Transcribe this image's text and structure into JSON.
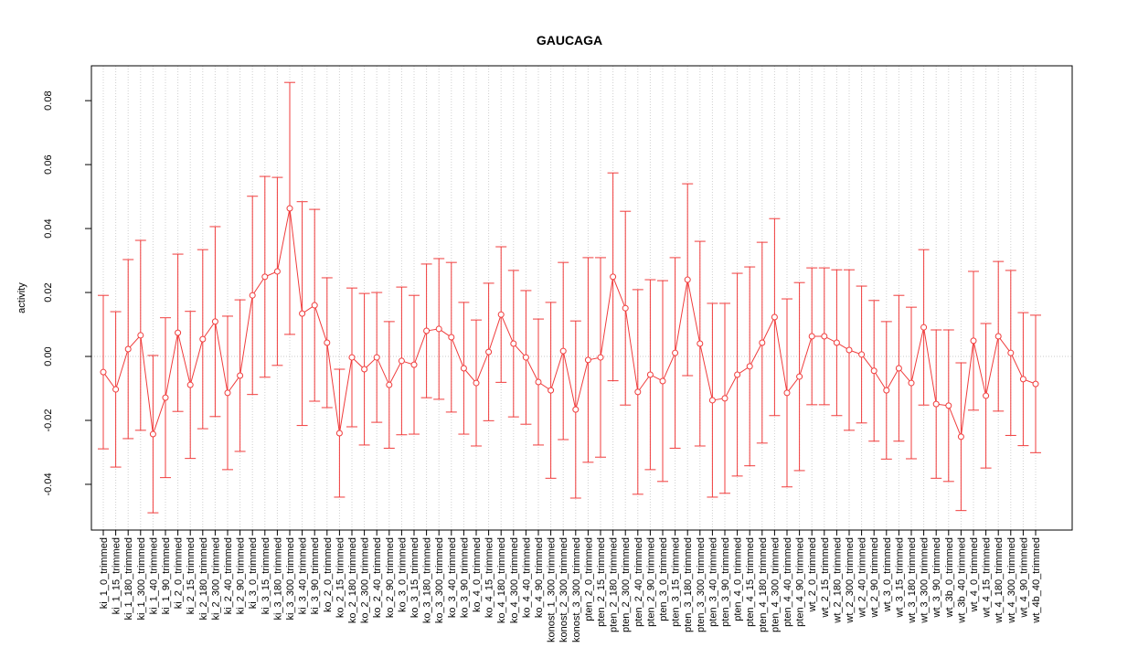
{
  "chart_data": {
    "type": "errorbar",
    "title": "GAUCAGA",
    "ylabel": "activity",
    "categories": [
      "ki_1_0_trimmed",
      "ki_1_15_trimmed",
      "ki_1_180_trimmed",
      "ki_1_300_trimmed",
      "ki_1_40_trimmed",
      "ki_1_90_trimmed",
      "ki_2_0_trimmed",
      "ki_2_15_trimmed",
      "ki_2_180_trimmed",
      "ki_2_300_trimmed",
      "ki_2_40_trimmed",
      "ki_2_90_trimmed",
      "ki_3_0_trimmed",
      "ki_3_15_trimmed",
      "ki_3_180_trimmed",
      "ki_3_300_trimmed",
      "ki_3_40_trimmed",
      "ki_3_90_trimmed",
      "ko_2_0_trimmed",
      "ko_2_15_trimmed",
      "ko_2_180_trimmed",
      "ko_2_300_trimmed",
      "ko_2_40_trimmed",
      "ko_2_90_trimmed",
      "ko_3_0_trimmed",
      "ko_3_15_trimmed",
      "ko_3_180_trimmed",
      "ko_3_300_trimmed",
      "ko_3_40_trimmed",
      "ko_3_90_trimmed",
      "ko_4_0_trimmed",
      "ko_4_15_trimmed",
      "ko_4_180_trimmed",
      "ko_4_300_trimmed",
      "ko_4_40_trimmed",
      "ko_4_90_trimmed",
      "konost_1_300_trimmed",
      "konost_2_300_trimmed",
      "konost_3_300_trimmed",
      "pten_2_0_trimmed",
      "pten_2_15_trimmed",
      "pten_2_180_trimmed",
      "pten_2_300_trimmed",
      "pten_2_40_trimmed",
      "pten_2_90_trimmed",
      "pten_3_0_trimmed",
      "pten_3_15_trimmed",
      "pten_3_180_trimmed",
      "pten_3_300_trimmed",
      "pten_3_40_trimmed",
      "pten_3_90_trimmed",
      "pten_4_0_trimmed",
      "pten_4_15_trimmed",
      "pten_4_180_trimmed",
      "pten_4_300_trimmed",
      "pten_4_40_trimmed",
      "pten_4_90_trimmed",
      "wt_2_0_trimmed",
      "wt_2_15_trimmed",
      "wt_2_180_trimmed",
      "wt_2_300_trimmed",
      "wt_2_40_trimmed",
      "wt_2_90_trimmed",
      "wt_3_0_trimmed",
      "wt_3_15_trimmed",
      "wt_3_180_trimmed",
      "wt_3_300_trimmed",
      "wt_3_90_trimmed",
      "wt_3b_0_trimmed",
      "wt_3b_40_trimmed",
      "wt_4_0_trimmed",
      "wt_4_15_trimmed",
      "wt_4_180_trimmed",
      "wt_4_300_trimmed",
      "wt_4_90_trimmed",
      "wt_4b_40_trimmed"
    ],
    "series": [
      {
        "color": "#f03c3c",
        "values": [
          -0.0049,
          -0.0103,
          0.0023,
          0.0066,
          -0.0243,
          -0.0129,
          0.0074,
          -0.0089,
          0.0054,
          0.0109,
          -0.0114,
          -0.006,
          0.0191,
          0.0249,
          0.0266,
          0.0463,
          0.0134,
          0.016,
          0.0043,
          -0.024,
          -0.0003,
          -0.004,
          -0.0003,
          -0.0089,
          -0.0014,
          -0.0026,
          0.008,
          0.0086,
          0.006,
          -0.0037,
          -0.0083,
          0.0014,
          0.0131,
          0.004,
          -0.0003,
          -0.008,
          -0.0106,
          0.0017,
          -0.0166,
          -0.0011,
          -0.0003,
          0.0249,
          0.0151,
          -0.0111,
          -0.0057,
          -0.0077,
          0.0011,
          0.024,
          0.004,
          -0.0137,
          -0.0131,
          -0.0057,
          -0.0031,
          0.0043,
          0.0123,
          -0.0114,
          -0.0063,
          0.0063,
          0.0063,
          0.0043,
          0.002,
          0.0006,
          -0.0045,
          -0.0106,
          -0.0037,
          -0.0083,
          0.0091,
          -0.0149,
          -0.0154,
          -0.0251,
          0.0049,
          -0.0123,
          0.0063,
          0.0011,
          -0.0071,
          -0.0086
        ],
        "errors": [
          0.024,
          0.0243,
          0.028,
          0.0297,
          0.0246,
          0.025,
          0.0246,
          0.023,
          0.028,
          0.0297,
          0.024,
          0.0237,
          0.031,
          0.0314,
          0.0294,
          0.0394,
          0.035,
          0.03,
          0.0203,
          0.02,
          0.0217,
          0.0237,
          0.0203,
          0.0198,
          0.0231,
          0.0217,
          0.0209,
          0.022,
          0.0234,
          0.0206,
          0.0197,
          0.0215,
          0.0212,
          0.0229,
          0.0209,
          0.0197,
          0.0275,
          0.0277,
          0.0277,
          0.032,
          0.0312,
          0.0325,
          0.0303,
          0.032,
          0.0297,
          0.0314,
          0.0298,
          0.03,
          0.032,
          0.0303,
          0.0297,
          0.0317,
          0.0311,
          0.0314,
          0.0308,
          0.0294,
          0.0294,
          0.0214,
          0.0214,
          0.0228,
          0.0251,
          0.0214,
          0.022,
          0.0215,
          0.0228,
          0.0237,
          0.0243,
          0.0232,
          0.0237,
          0.0231,
          0.0217,
          0.0226,
          0.0234,
          0.0258,
          0.0208,
          0.0215
        ]
      }
    ],
    "ylim": [
      -0.0543,
      0.0909
    ],
    "yticks": [
      -0.04,
      -0.02,
      {
        "value": 0,
        "label": "0.00"
      },
      0.02,
      0.04,
      0.06,
      0.08
    ],
    "hline": 0,
    "grid": true
  }
}
